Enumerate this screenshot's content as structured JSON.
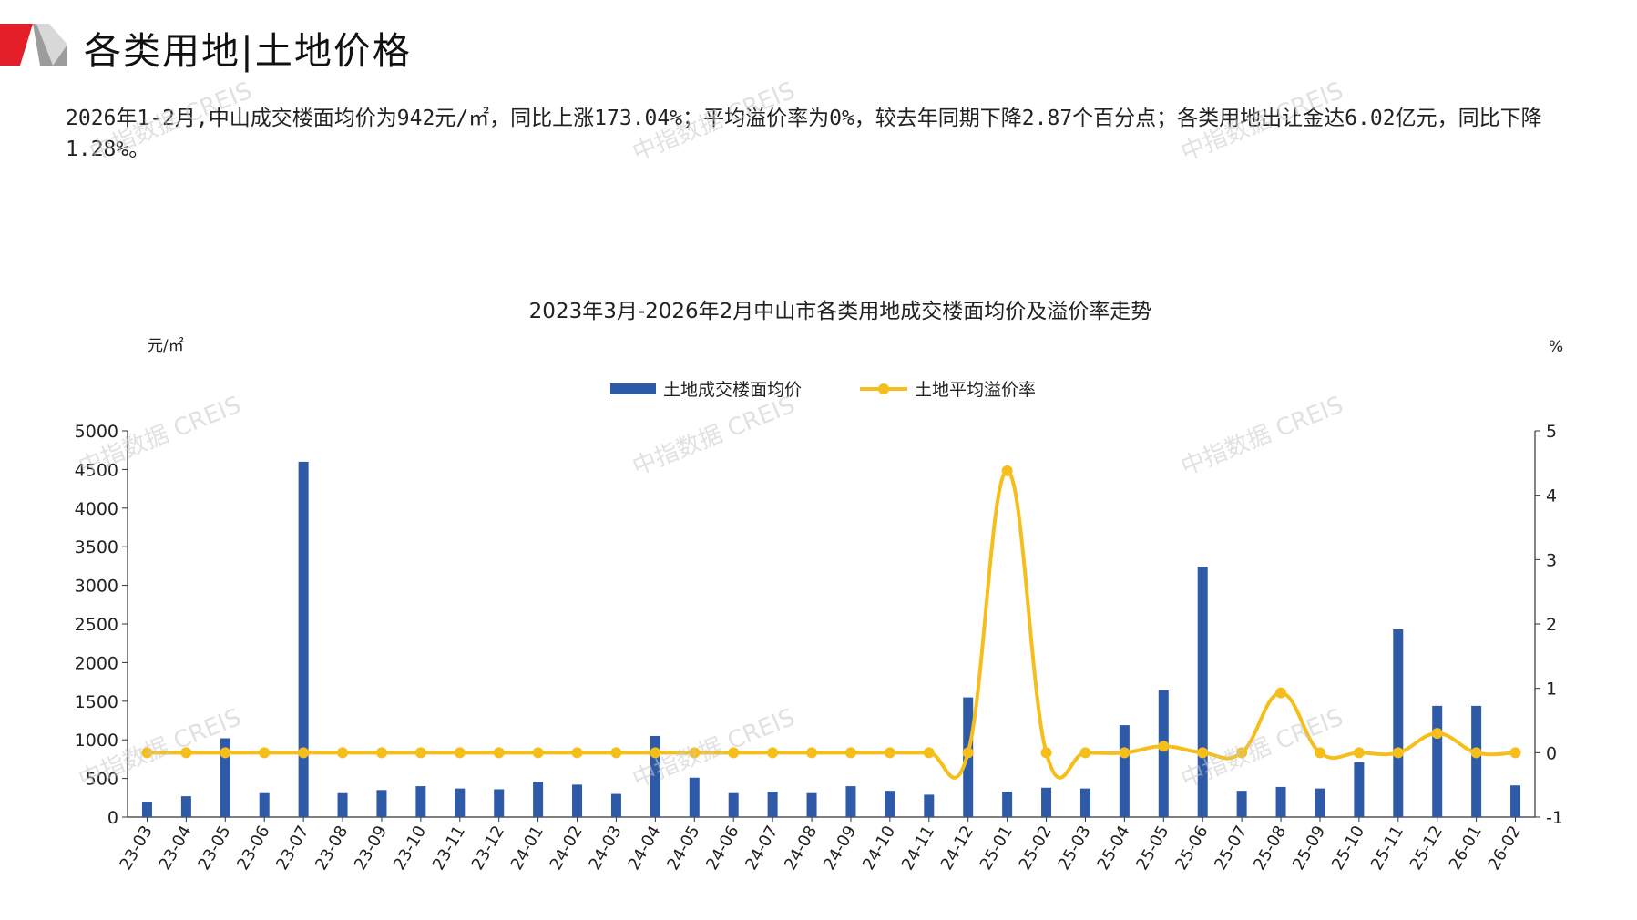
{
  "page_title": "各类用地|土地价格",
  "summary": "2026年1-2月,中山成交楼面均价为942元/㎡，同比上涨173.04%；平均溢价率为0%，较去年同期下降2.87个百分点；各类用地出让金达6.02亿元，同比下降1.28%。",
  "watermark": "中指数据 CREIS",
  "colors": {
    "bar": "#2E5AA8",
    "line": "#F6BE1A",
    "logo_red": "#E3202A",
    "logo_grey": "#9C9C9C"
  },
  "chart_data": {
    "type": "bar+line",
    "title": "2023年3月-2026年2月中山市各类用地成交楼面均价及溢价率走势",
    "y_left_label": "元/㎡",
    "y_right_label": "%",
    "y_left_range": [
      0,
      5000
    ],
    "y_left_ticks": [
      "0",
      "500",
      "1000",
      "1500",
      "2000",
      "2500",
      "3000",
      "3500",
      "4000",
      "4500",
      "5000"
    ],
    "y_right_range": [
      -1,
      5
    ],
    "y_right_ticks": [
      "-1",
      "0",
      "1",
      "2",
      "3",
      "4",
      "5"
    ],
    "legend_position": "top-center",
    "categories": [
      "23-03",
      "23-04",
      "23-05",
      "23-06",
      "23-07",
      "23-08",
      "23-09",
      "23-10",
      "23-11",
      "23-12",
      "24-01",
      "24-02",
      "24-03",
      "24-04",
      "24-05",
      "24-06",
      "24-07",
      "24-08",
      "24-09",
      "24-10",
      "24-11",
      "24-12",
      "25-01",
      "25-02",
      "25-03",
      "25-04",
      "25-05",
      "25-06",
      "25-07",
      "25-08",
      "25-09",
      "25-10",
      "25-11",
      "25-12",
      "26-01",
      "26-02"
    ],
    "series": [
      {
        "name": "土地成交楼面均价",
        "type": "bar",
        "axis": "left",
        "values": [
          200,
          270,
          1020,
          310,
          4600,
          310,
          350,
          400,
          370,
          360,
          460,
          420,
          300,
          1050,
          510,
          310,
          330,
          310,
          400,
          340,
          290,
          1550,
          330,
          380,
          370,
          1190,
          1640,
          3240,
          340,
          390,
          370,
          710,
          2430,
          1440,
          1440,
          410
        ]
      },
      {
        "name": "土地平均溢价率",
        "type": "line",
        "axis": "right",
        "values": [
          0,
          0,
          0,
          0,
          0,
          0,
          0,
          0,
          0,
          0,
          0,
          0,
          0,
          0,
          0,
          0,
          0,
          0,
          0,
          0,
          0,
          0,
          4.38,
          0,
          0,
          0,
          0.1,
          0,
          0,
          0.93,
          0,
          0,
          0,
          0.3,
          0,
          0
        ]
      }
    ]
  }
}
